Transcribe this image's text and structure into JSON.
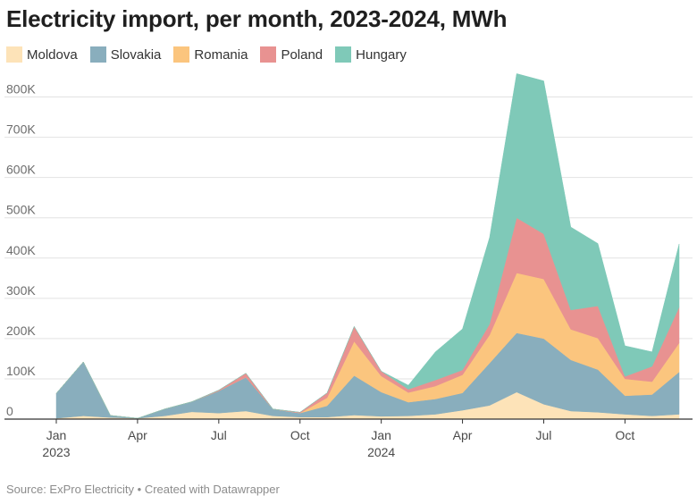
{
  "title": "Electricity import, per month, 2023-2024, MWh",
  "source": "Source: ExPro Electricity • Created with Datawrapper",
  "chart_data": {
    "type": "area",
    "stacked": true,
    "title": "Electricity import, per month, 2023-2024, MWh",
    "xlabel": "",
    "ylabel": "MWh",
    "ylim": [
      0,
      850000
    ],
    "grid": true,
    "legend_position": "top-left",
    "x": [
      "2023-01",
      "2023-02",
      "2023-03",
      "2023-04",
      "2023-05",
      "2023-06",
      "2023-07",
      "2023-08",
      "2023-09",
      "2023-10",
      "2023-11",
      "2023-12",
      "2024-01",
      "2024-02",
      "2024-03",
      "2024-04",
      "2024-05",
      "2024-06",
      "2024-07",
      "2024-08",
      "2024-09",
      "2024-10",
      "2024-11",
      "2024-12"
    ],
    "y_ticks": [
      {
        "value": 0,
        "label": "0"
      },
      {
        "value": 100000,
        "label": "100K"
      },
      {
        "value": 200000,
        "label": "200K"
      },
      {
        "value": 300000,
        "label": "300K"
      },
      {
        "value": 400000,
        "label": "400K"
      },
      {
        "value": 500000,
        "label": "500K"
      },
      {
        "value": 600000,
        "label": "600K"
      },
      {
        "value": 700000,
        "label": "700K"
      },
      {
        "value": 800000,
        "label": "800K"
      }
    ],
    "x_ticks": [
      {
        "index": 0,
        "label": "Jan",
        "year": "2023"
      },
      {
        "index": 3,
        "label": "Apr",
        "year": ""
      },
      {
        "index": 6,
        "label": "Jul",
        "year": ""
      },
      {
        "index": 9,
        "label": "Oct",
        "year": ""
      },
      {
        "index": 12,
        "label": "Jan",
        "year": "2024"
      },
      {
        "index": 15,
        "label": "Apr",
        "year": ""
      },
      {
        "index": 18,
        "label": "Jul",
        "year": ""
      },
      {
        "index": 21,
        "label": "Oct",
        "year": ""
      }
    ],
    "series": [
      {
        "name": "Moldova",
        "color": "#fde3b8",
        "values": [
          2000,
          8000,
          4000,
          2000,
          8000,
          18000,
          15000,
          20000,
          8000,
          5000,
          5000,
          10000,
          7000,
          8000,
          12000,
          22000,
          34000,
          67000,
          37000,
          20000,
          17000,
          12000,
          8000,
          12000
        ]
      },
      {
        "name": "Slovakia",
        "color": "#89aebd",
        "values": [
          62000,
          134000,
          5000,
          0,
          17000,
          25000,
          55000,
          84000,
          17000,
          10000,
          28000,
          98000,
          60000,
          34000,
          38000,
          43000,
          105000,
          147000,
          163000,
          127000,
          106000,
          46000,
          53000,
          105000
        ]
      },
      {
        "name": "Romania",
        "color": "#fbc57e",
        "values": [
          0,
          0,
          0,
          0,
          0,
          0,
          0,
          0,
          0,
          0,
          20000,
          85000,
          40000,
          24000,
          32000,
          45000,
          70000,
          149000,
          148000,
          76000,
          78000,
          42000,
          32000,
          72000
        ]
      },
      {
        "name": "Poland",
        "color": "#e89291",
        "values": [
          0,
          0,
          0,
          0,
          0,
          0,
          2000,
          10000,
          0,
          2000,
          12000,
          37000,
          12000,
          8000,
          15000,
          12000,
          27000,
          137000,
          112000,
          48000,
          80000,
          6000,
          38000,
          89000
        ]
      },
      {
        "name": "Hungary",
        "color": "#7fc9b8",
        "values": [
          0,
          0,
          0,
          0,
          0,
          0,
          0,
          0,
          0,
          0,
          0,
          0,
          0,
          10000,
          70000,
          102000,
          215000,
          358000,
          380000,
          206000,
          155000,
          76000,
          36000,
          157000
        ]
      }
    ]
  }
}
